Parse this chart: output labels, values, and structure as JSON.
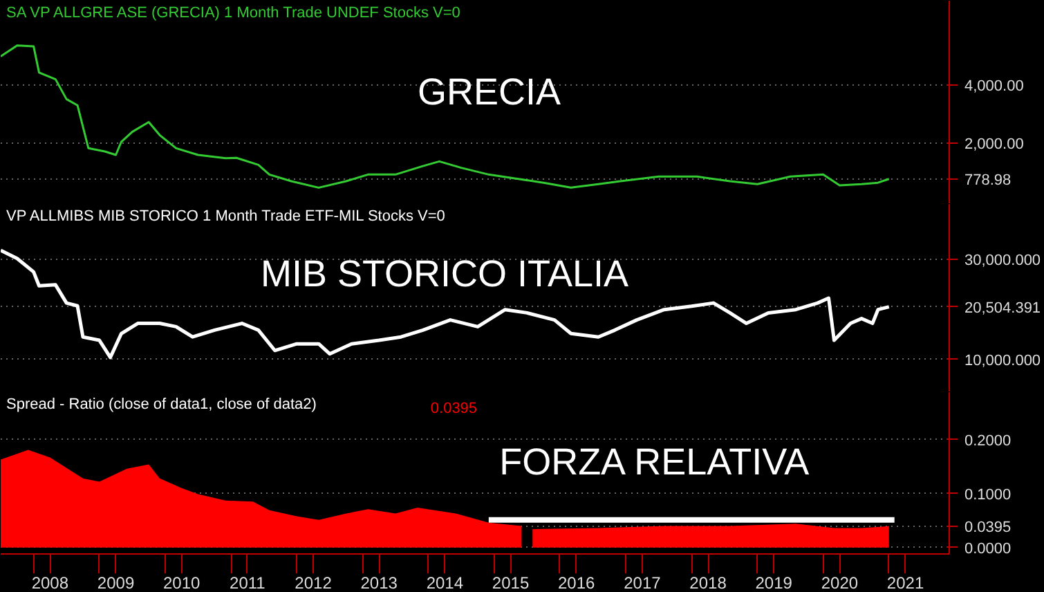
{
  "chart_data": [
    {
      "type": "line",
      "title": "GRECIA",
      "subtitle": "SA  VP  ALLGRE  ASE (GRECIA)  1 Month  Trade  UNDEF  Stocks  V=0",
      "xlim": [
        "2007-07",
        "2021-12"
      ],
      "ylim": [
        -80,
        6880
      ],
      "yticks": [
        778.98,
        {
          "value": 2000,
          "label": "2,000.00"
        },
        {
          "value": 4000,
          "label": "4,000.00"
        }
      ],
      "tick_labels": "y",
      "grid": "y",
      "series": [
        {
          "color": "#33cc33",
          "x": [
            "2007-07",
            "2007-10",
            "2008-01",
            "2008-02",
            "2008-05",
            "2008-07",
            "2008-09",
            "2008-11",
            "2009-02",
            "2009-04",
            "2009-05",
            "2009-07",
            "2009-10",
            "2009-12",
            "2010-03",
            "2010-07",
            "2010-12",
            "2011-02",
            "2011-06",
            "2011-08",
            "2011-12",
            "2012-05",
            "2012-10",
            "2013-02",
            "2013-07",
            "2013-12",
            "2014-03",
            "2014-07",
            "2014-12",
            "2015-05",
            "2015-10",
            "2016-03",
            "2016-08",
            "2016-12",
            "2017-07",
            "2018-02",
            "2018-08",
            "2019-01",
            "2019-07",
            "2020-01",
            "2020-04",
            "2020-08",
            "2020-11",
            "2021-01"
          ],
          "values": [
            4975,
            5350,
            5320,
            4420,
            4190,
            3510,
            3300,
            1830,
            1720,
            1600,
            2050,
            2390,
            2725,
            2280,
            1830,
            1600,
            1490,
            1500,
            1260,
            930,
            700,
            480,
            700,
            930,
            930,
            1220,
            1380,
            1160,
            930,
            790,
            650,
            480,
            600,
            700,
            860,
            860,
            700,
            600,
            860,
            930,
            560,
            600,
            650,
            778.98
          ]
        }
      ]
    },
    {
      "type": "line",
      "title": "MIB STORICO ITALIA",
      "subtitle": "VP  ALLMIBS  MIB STORICO  1 Month  Trade  ETF-MIL  Stocks  V=0",
      "xlim": [
        "2007-07",
        "2021-12"
      ],
      "ylim": [
        3500,
        41000
      ],
      "yticks": [
        {
          "value": 10000,
          "label": "10,000.000"
        },
        {
          "value": 20504.391,
          "label": "20,504.391"
        },
        {
          "value": 30000,
          "label": "30,000.000"
        }
      ],
      "tick_labels": "y",
      "grid": "y",
      "series": [
        {
          "color": "#ffffff",
          "x": [
            "2007-07",
            "2007-10",
            "2008-01",
            "2008-02",
            "2008-05",
            "2008-07",
            "2008-09",
            "2008-10",
            "2009-01",
            "2009-03",
            "2009-05",
            "2009-08",
            "2009-12",
            "2010-03",
            "2010-06",
            "2010-10",
            "2011-03",
            "2011-06",
            "2011-09",
            "2012-01",
            "2012-05",
            "2012-07",
            "2012-11",
            "2013-04",
            "2013-08",
            "2013-12",
            "2014-05",
            "2014-10",
            "2015-03",
            "2015-07",
            "2015-12",
            "2016-03",
            "2016-08",
            "2016-11",
            "2017-03",
            "2017-08",
            "2018-01",
            "2018-05",
            "2018-08",
            "2018-11",
            "2019-03",
            "2019-08",
            "2019-12",
            "2020-02",
            "2020-03",
            "2020-06",
            "2020-08",
            "2020-10",
            "2020-11",
            "2021-01"
          ],
          "values": [
            31780,
            30140,
            27470,
            24700,
            24890,
            21270,
            20700,
            14500,
            13830,
            10420,
            15180,
            17210,
            17210,
            16540,
            14500,
            15860,
            17210,
            15860,
            11800,
            13130,
            13130,
            11130,
            13130,
            13830,
            14500,
            15860,
            17890,
            16540,
            19950,
            19300,
            17890,
            15180,
            14500,
            15860,
            17890,
            19950,
            20620,
            21270,
            19300,
            17210,
            19300,
            19950,
            21270,
            22250,
            13830,
            17210,
            18170,
            17210,
            19950,
            20504.391
          ]
        }
      ]
    },
    {
      "type": "area",
      "title": "FORZA RELATIVA",
      "subtitle": "Spread - Ratio    (close of data1,  close of data2)",
      "xlim": [
        "2007-07",
        "2021-12"
      ],
      "ylim": [
        -0.012,
        0.288
      ],
      "yticks": [
        {
          "value": 0,
          "label": "0.0000"
        },
        0.0395,
        {
          "value": 0.1,
          "label": "0.1000"
        },
        {
          "value": 0.2,
          "label": "0.2000"
        }
      ],
      "grid": "y",
      "xticks": [
        {
          "value": "2008-01",
          "label": null
        },
        {
          "value": "2008-04",
          "label": "2008"
        },
        {
          "value": "2009-01",
          "label": null
        },
        {
          "value": "2009-04",
          "label": "2009"
        },
        {
          "value": "2010-01",
          "label": null
        },
        {
          "value": "2010-04",
          "label": "2010"
        },
        {
          "value": "2011-01",
          "label": null
        },
        {
          "value": "2011-04",
          "label": "2011"
        },
        {
          "value": "2012-01",
          "label": null
        },
        {
          "value": "2012-04",
          "label": "2012"
        },
        {
          "value": "2013-01",
          "label": null
        },
        {
          "value": "2013-04",
          "label": "2013"
        },
        {
          "value": "2014-01",
          "label": null
        },
        {
          "value": "2014-04",
          "label": "2014"
        },
        {
          "value": "2015-01",
          "label": null
        },
        {
          "value": "2015-04",
          "label": "2015"
        },
        {
          "value": "2016-01",
          "label": null
        },
        {
          "value": "2016-04",
          "label": "2016"
        },
        {
          "value": "2017-01",
          "label": null
        },
        {
          "value": "2017-04",
          "label": "2017"
        },
        {
          "value": "2018-01",
          "label": null
        },
        {
          "value": "2018-04",
          "label": "2018"
        },
        {
          "value": "2019-01",
          "label": null
        },
        {
          "value": "2019-04",
          "label": "2019"
        },
        {
          "value": "2020-01",
          "label": null
        },
        {
          "value": "2020-04",
          "label": "2020"
        },
        {
          "value": "2021-01",
          "label": null
        },
        {
          "value": "2021-04",
          "label": "2021"
        }
      ],
      "series": [
        {
          "type": "area",
          "color": "#ff0000",
          "x": [
            "2007-07",
            "2007-12",
            "2008-04",
            "2008-10",
            "2009-01",
            "2009-06",
            "2009-10",
            "2009-12",
            "2010-04",
            "2010-07",
            "2010-12",
            "2011-05",
            "2011-08",
            "2012-01",
            "2012-05",
            "2012-10",
            "2013-02",
            "2013-07",
            "2013-11",
            "2014-06",
            "2014-12",
            "2015-06",
            "2015-07",
            "2015-08",
            "2016-08",
            "2017-08",
            "2018-08",
            "2019-08",
            "2020-03",
            "2020-08",
            "2021-01"
          ],
          "values": [
            0.163,
            0.181,
            0.167,
            0.128,
            0.122,
            0.146,
            0.154,
            0.128,
            0.11,
            0.099,
            0.087,
            0.085,
            0.069,
            0.058,
            0.051,
            0.063,
            0.071,
            0.063,
            0.074,
            0.063,
            0.046,
            0.04,
            null,
            0.034,
            0.036,
            0.04,
            0.04,
            0.044,
            0.036,
            0.036,
            0.0395
          ]
        },
        {
          "type": "line",
          "color": "#ffffff",
          "x": [
            "2014-12",
            "2021-02"
          ],
          "values": [
            0.051,
            0.051
          ]
        }
      ],
      "annotations": [
        "0.0395"
      ]
    }
  ]
}
